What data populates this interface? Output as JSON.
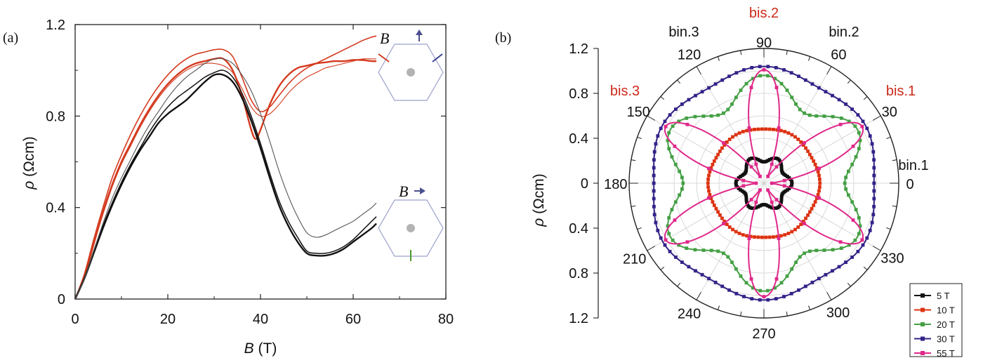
{
  "panels": {
    "a": {
      "label": "(a)"
    },
    "b": {
      "label": "(b)"
    }
  },
  "chart_data": [
    {
      "type": "line",
      "panel": "(a)",
      "xlabel_italic": "B",
      "xlabel_unit": "(T)",
      "ylabel_italic": "ρ",
      "ylabel_unit": "(Ωcm)",
      "xlim": [
        0,
        80
      ],
      "ylim": [
        0,
        1.2
      ],
      "x_ticks": [
        0,
        20,
        40,
        60,
        80
      ],
      "x_tick_labels": [
        "0",
        "20",
        "40",
        "60",
        "80"
      ],
      "y_ticks": [
        0,
        0.4,
        0.8,
        1.2
      ],
      "y_tick_labels": [
        "0",
        "0.4",
        "0.8",
        "1.2"
      ],
      "grid": false,
      "series": [
        {
          "color": "#d43a1e",
          "width": 2.4,
          "x": [
            0,
            2,
            4,
            6,
            8,
            10,
            12,
            14,
            16,
            18,
            20,
            22,
            24,
            26,
            28,
            30,
            32,
            34,
            36,
            38,
            39,
            40,
            42,
            44,
            46,
            48,
            50,
            52,
            54,
            56,
            58,
            60,
            62,
            64,
            65
          ],
          "y": [
            0,
            0.1,
            0.24,
            0.38,
            0.5,
            0.6,
            0.68,
            0.76,
            0.83,
            0.89,
            0.94,
            0.98,
            1.01,
            1.03,
            1.04,
            1.05,
            1.05,
            1.0,
            0.89,
            0.74,
            0.7,
            0.74,
            0.85,
            0.93,
            0.98,
            1.01,
            1.02,
            1.03,
            1.035,
            1.04,
            1.04,
            1.045,
            1.045,
            1.04,
            1.04
          ]
        },
        {
          "color": "#d43a1e",
          "width": 1.6,
          "x": [
            0,
            2,
            4,
            6,
            8,
            10,
            12,
            14,
            16,
            18,
            20,
            22,
            24,
            26,
            28,
            30,
            32,
            34,
            36,
            38,
            40,
            42,
            44,
            46,
            48,
            50,
            52,
            54,
            56,
            58,
            60,
            62,
            64,
            65
          ],
          "y": [
            0,
            0.11,
            0.26,
            0.4,
            0.53,
            0.63,
            0.72,
            0.8,
            0.87,
            0.93,
            0.98,
            1.02,
            1.05,
            1.07,
            1.08,
            1.09,
            1.09,
            1.06,
            0.97,
            0.87,
            0.82,
            0.84,
            0.89,
            0.94,
            0.98,
            1.01,
            1.03,
            1.05,
            1.07,
            1.09,
            1.11,
            1.13,
            1.145,
            1.15
          ]
        },
        {
          "color": "#d43a1e",
          "width": 1.1,
          "x": [
            0,
            2,
            4,
            6,
            8,
            10,
            12,
            14,
            16,
            18,
            20,
            22,
            24,
            26,
            28,
            30,
            32,
            34,
            36,
            38,
            40,
            42,
            44,
            46,
            48,
            50,
            52,
            54,
            56,
            58,
            60,
            62,
            64,
            65
          ],
          "y": [
            0,
            0.1,
            0.24,
            0.37,
            0.49,
            0.59,
            0.67,
            0.75,
            0.82,
            0.88,
            0.93,
            0.97,
            1.0,
            1.02,
            1.03,
            1.03,
            1.02,
            0.99,
            0.92,
            0.84,
            0.8,
            0.81,
            0.85,
            0.9,
            0.94,
            0.97,
            0.99,
            1.01,
            1.02,
            1.03,
            1.04,
            1.05,
            1.05,
            1.05
          ]
        },
        {
          "color": "#111111",
          "width": 2.4,
          "x": [
            0,
            2,
            4,
            6,
            8,
            10,
            12,
            14,
            16,
            18,
            20,
            22,
            24,
            26,
            28,
            30,
            32,
            34,
            36,
            38,
            40,
            42,
            44,
            46,
            48,
            50,
            52,
            54,
            56,
            58,
            60,
            62,
            64,
            65
          ],
          "y": [
            0,
            0.09,
            0.2,
            0.31,
            0.41,
            0.5,
            0.58,
            0.65,
            0.71,
            0.77,
            0.81,
            0.84,
            0.87,
            0.91,
            0.95,
            0.98,
            0.98,
            0.95,
            0.88,
            0.78,
            0.66,
            0.53,
            0.41,
            0.32,
            0.25,
            0.2,
            0.19,
            0.19,
            0.2,
            0.22,
            0.25,
            0.28,
            0.31,
            0.33
          ]
        },
        {
          "color": "#111111",
          "width": 1.5,
          "x": [
            0,
            2,
            4,
            6,
            8,
            10,
            12,
            14,
            16,
            18,
            20,
            22,
            24,
            26,
            28,
            30,
            32,
            34,
            36,
            38,
            40,
            42,
            44,
            46,
            48,
            50,
            52,
            54,
            56,
            58,
            60,
            62,
            64,
            65
          ],
          "y": [
            0,
            0.09,
            0.21,
            0.32,
            0.42,
            0.51,
            0.59,
            0.66,
            0.73,
            0.79,
            0.84,
            0.88,
            0.91,
            0.94,
            0.97,
            0.99,
            1.0,
            0.97,
            0.9,
            0.8,
            0.68,
            0.55,
            0.43,
            0.34,
            0.27,
            0.21,
            0.2,
            0.2,
            0.21,
            0.23,
            0.26,
            0.3,
            0.34,
            0.36
          ]
        },
        {
          "color": "#555555",
          "width": 1.1,
          "x": [
            0,
            2,
            4,
            6,
            8,
            10,
            12,
            14,
            16,
            18,
            20,
            22,
            24,
            26,
            28,
            30,
            32,
            34,
            36,
            38,
            40,
            42,
            44,
            46,
            48,
            50,
            52,
            54,
            56,
            58,
            60,
            62,
            64,
            65
          ],
          "y": [
            0,
            0.09,
            0.21,
            0.33,
            0.44,
            0.53,
            0.61,
            0.69,
            0.76,
            0.82,
            0.88,
            0.93,
            0.97,
            1.0,
            1.03,
            1.05,
            1.05,
            1.03,
            0.98,
            0.91,
            0.81,
            0.69,
            0.56,
            0.45,
            0.36,
            0.29,
            0.27,
            0.28,
            0.3,
            0.32,
            0.34,
            0.37,
            0.4,
            0.42
          ]
        }
      ],
      "insets": [
        {
          "field_label": "B",
          "arrow": "up",
          "vane_colors": [
            "#d43a1e",
            "#3b3f8f"
          ]
        },
        {
          "field_label": "B",
          "arrow": "right",
          "vane_colors": [
            "#4a9a2a"
          ]
        }
      ]
    },
    {
      "type": "polar",
      "panel": "(b)",
      "ylabel_italic": "ρ",
      "ylabel_unit": "(Ωcm)",
      "rlim": [
        0,
        1.2
      ],
      "r_tick_labels": [
        "1.2",
        "0.8",
        "0.4",
        "0",
        "0.4",
        "0.8",
        "1.2"
      ],
      "angle_ticks": [
        0,
        30,
        60,
        90,
        120,
        150,
        180,
        210,
        240,
        270,
        300,
        330
      ],
      "angle_tick_labels": [
        "0",
        "30",
        "60",
        "90",
        "120",
        "150",
        "180",
        "210",
        "240",
        "270",
        "300",
        "330"
      ],
      "direction_labels": [
        {
          "text": "bin.1",
          "angle": 0,
          "color": "#111111"
        },
        {
          "text": "bis.1",
          "angle": 30,
          "color": "#cc2a1a"
        },
        {
          "text": "bin.2",
          "angle": 60,
          "color": "#111111"
        },
        {
          "text": "bis.2",
          "angle": 90,
          "color": "#cc2a1a"
        },
        {
          "text": "bin.3",
          "angle": 120,
          "color": "#111111"
        },
        {
          "text": "bis.3",
          "angle": 150,
          "color": "#cc2a1a"
        }
      ],
      "grid": true,
      "legend_position": "bottom-right",
      "series": [
        {
          "name": "5 T",
          "color": "#111111",
          "r0": 0.22,
          "amp": 0.03,
          "phase": 0
        },
        {
          "name": "10 T",
          "color": "#dd3311",
          "r0": 0.49,
          "amp": 0.008,
          "phase": 0
        },
        {
          "name": "20 T",
          "color": "#44a044",
          "r0": 0.84,
          "amp": 0.12,
          "phase": 30
        },
        {
          "name": "30 T",
          "color": "#332288",
          "r0": 1.01,
          "amp": 0.03,
          "phase": 30
        },
        {
          "name": "55 T",
          "color": "#e0288a",
          "r_petal": 1.01,
          "r_min": 0.07,
          "petals": 6,
          "petal_angles": [
            30,
            90,
            150,
            210,
            270,
            330
          ]
        }
      ]
    }
  ]
}
